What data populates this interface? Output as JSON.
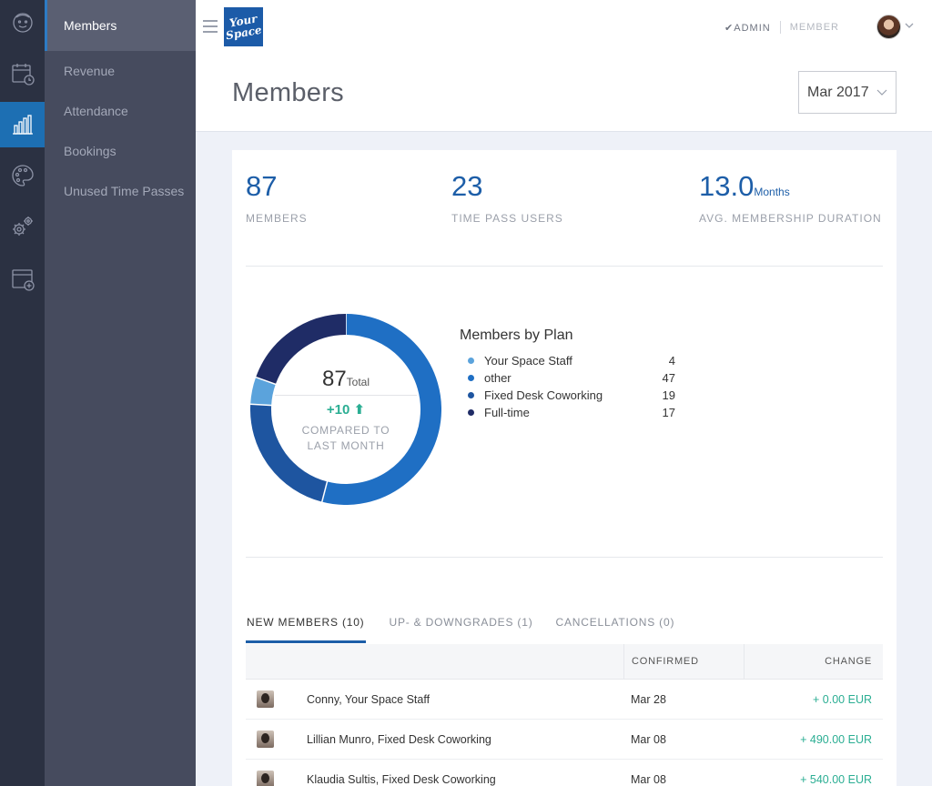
{
  "rail": {
    "items": [
      {
        "icon": "face-icon",
        "active": false
      },
      {
        "icon": "calendar-clock-icon",
        "active": false
      },
      {
        "icon": "bar-chart-icon",
        "active": true
      },
      {
        "icon": "palette-icon",
        "active": false
      },
      {
        "icon": "gears-icon",
        "active": false
      },
      {
        "icon": "window-add-icon",
        "active": false
      }
    ]
  },
  "subnav": {
    "items": [
      {
        "label": "Members",
        "active": true
      },
      {
        "label": "Revenue",
        "active": false
      },
      {
        "label": "Attendance",
        "active": false
      },
      {
        "label": "Bookings",
        "active": false
      },
      {
        "label": "Unused Time Passes",
        "active": false
      }
    ]
  },
  "header": {
    "logo_line1": "Your",
    "logo_line2": "Space",
    "role_admin": "✔ADMIN",
    "role_member": "MEMBER",
    "page_title": "Members",
    "month": "Mar 2017"
  },
  "stats": {
    "members_value": "87",
    "members_label": "MEMBERS",
    "timepass_value": "23",
    "timepass_label": "TIME PASS USERS",
    "duration_value": "13.0",
    "duration_unit": "Months",
    "duration_label": "AVG. MEMBERSHIP DURATION"
  },
  "donut": {
    "total": "87",
    "total_label": "Total",
    "change": "+10",
    "compare_line1": "COMPARED TO",
    "compare_line2": "LAST MONTH"
  },
  "chart_data": {
    "type": "pie",
    "title": "Members by Plan",
    "categories": [
      "Your Space Staff",
      "other",
      "Fixed Desk Coworking",
      "Full-time"
    ],
    "values": [
      4,
      47,
      19,
      17
    ],
    "colors": [
      "#5ba3dc",
      "#1f6fc4",
      "#1e55a0",
      "#1f2c66"
    ]
  },
  "tabs": [
    {
      "label": "NEW MEMBERS (10)",
      "active": true
    },
    {
      "label": "UP- & DOWNGRADES (1)",
      "active": false
    },
    {
      "label": "CANCELLATIONS (0)",
      "active": false
    }
  ],
  "table": {
    "col_confirmed": "CONFIRMED",
    "col_change": "CHANGE",
    "rows": [
      {
        "name": "Conny, Your Space Staff",
        "confirmed": "Mar 28",
        "change": "+ 0.00 EUR"
      },
      {
        "name": "Lillian Munro, Fixed Desk Coworking",
        "confirmed": "Mar 08",
        "change": "+ 490.00 EUR"
      },
      {
        "name": "Klaudia Sultis, Fixed Desk Coworking",
        "confirmed": "Mar 08",
        "change": "+ 540.00 EUR"
      }
    ]
  },
  "colors": {
    "accent": "#1d5ea8",
    "positive": "#2bae93",
    "rail_bg": "#2b3142",
    "subnav_bg": "#464b5e"
  }
}
